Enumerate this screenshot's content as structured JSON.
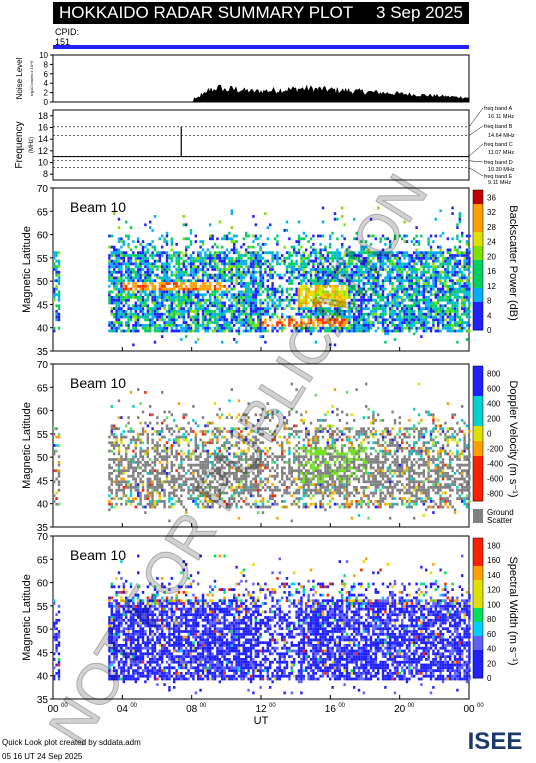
{
  "header": {
    "title": "HOKKAIDO RADAR SUMMARY PLOT",
    "date": "3 Sep 2025"
  },
  "cpid": {
    "label": "CPID:",
    "value": "151"
  },
  "noise_panel": {
    "ylabel": "Noise Level",
    "ylabel_units": "log10 counts x 10^9",
    "ticks": [
      "0",
      "2",
      "4",
      "6",
      "8",
      "10"
    ]
  },
  "freq_panel": {
    "ylabel": "Frequency",
    "units": "(MHz)",
    "ticks": [
      "8",
      "10",
      "12",
      "14",
      "16",
      "18"
    ],
    "bands": [
      "freq band A",
      "16.11 MHz",
      "freq band B",
      "14.64 MHz",
      "freq band C",
      "11.07 MHz",
      "freq band D",
      "10.30 MHz",
      "freq band E",
      "9.11 MHz"
    ]
  },
  "panels": [
    {
      "beam": "Beam 10",
      "ylabel": "Magnetic Latitude",
      "cb_label": "Backscatter Power (dB)",
      "cb_ticks": [
        "0",
        "4",
        "8",
        "12",
        "16",
        "20",
        "24",
        "28",
        "32",
        "36"
      ]
    },
    {
      "beam": "Beam 10",
      "ylabel": "Magnetic Latitude",
      "cb_label": "Doppler Velocity (m s⁻¹)",
      "cb_ticks": [
        "800",
        "600",
        "400",
        "200",
        "0",
        "-200",
        "-400",
        "-600",
        "-800"
      ],
      "gs_label": "Ground",
      "gs_label2": "Scatter"
    },
    {
      "beam": "Beam 10",
      "ylabel": "Magnetic Latitude",
      "cb_label": "Spectral Width (m s⁻¹)",
      "cb_ticks": [
        "0",
        "20",
        "40",
        "60",
        "80",
        "100",
        "120",
        "140",
        "160",
        "180"
      ]
    }
  ],
  "lat_ticks": [
    "35",
    "40",
    "45",
    "50",
    "55",
    "60",
    "65",
    "70"
  ],
  "xaxis": {
    "label": "UT",
    "ticks": [
      "00",
      "04",
      "08",
      "12",
      "16",
      "20",
      "00"
    ],
    "tick_sup": "00"
  },
  "footer": {
    "line1": "Quick Look plot created by sddata.adm",
    "line2": "05 16 UT 24 Sep 2025"
  },
  "logo": "ISEE",
  "watermark": "NOT FOR PUBLICATION",
  "colors": {
    "cpid_bar": "#2020ff",
    "ground_scatter": "#808080"
  },
  "chart_data": {
    "type": "heatmap",
    "x_range_hours": [
      0,
      24
    ],
    "lat_range": [
      35,
      70
    ],
    "frequency_MHz": {
      "peak_time_hours": 7.4,
      "peak_value": 16.1,
      "baseline": 11
    },
    "noise_profile": [
      0,
      0,
      0,
      0,
      0,
      0,
      0,
      0,
      0,
      0,
      0,
      0,
      0,
      0,
      0,
      0,
      0,
      0,
      0,
      0,
      1,
      2,
      3,
      3.5,
      3,
      3.2,
      3,
      2.8,
      2.6,
      2.7,
      2.8,
      2.9,
      3,
      3.1,
      3.2,
      3.3,
      3.3,
      3.2,
      3.1,
      3,
      2.9,
      2.8,
      2.7,
      2.6,
      2.5,
      2.4,
      2.3,
      2.2,
      2.1,
      2,
      1.9,
      1.8,
      1.7,
      1.6,
      1.5,
      1.4,
      1.3,
      1.2,
      1.1,
      1
    ]
  }
}
